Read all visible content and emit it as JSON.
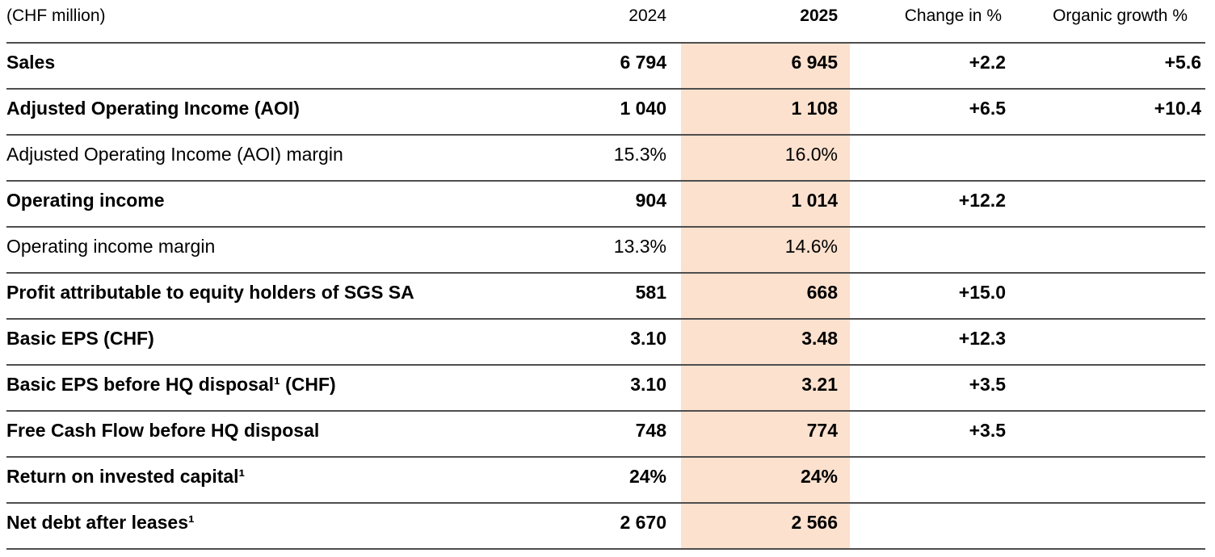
{
  "table": {
    "highlight_color": "#fce1ce",
    "rule_color": "#4e4e4e",
    "header": {
      "unit": "(CHF million)",
      "y2024": "2024",
      "y2025": "2025",
      "change": "Change in %",
      "organic": "Organic growth %"
    },
    "rows": [
      {
        "label": "Sales",
        "y2024": "6 794",
        "y2025": "6 945",
        "change": "+2.2",
        "organic": "+5.6",
        "bold": true
      },
      {
        "label": "Adjusted Operating Income (AOI)",
        "y2024": "1 040",
        "y2025": "1 108",
        "change": "+6.5",
        "organic": "+10.4",
        "bold": true
      },
      {
        "label": "Adjusted Operating Income (AOI) margin",
        "y2024": "15.3%",
        "y2025": "16.0%",
        "change": "",
        "organic": "",
        "bold": false
      },
      {
        "label": "Operating income",
        "y2024": "904",
        "y2025": "1 014",
        "change": "+12.2",
        "organic": "",
        "bold": true
      },
      {
        "label": "Operating income margin",
        "y2024": "13.3%",
        "y2025": "14.6%",
        "change": "",
        "organic": "",
        "bold": false
      },
      {
        "label": "Profit attributable to equity holders of SGS SA",
        "y2024": "581",
        "y2025": "668",
        "change": "+15.0",
        "organic": "",
        "bold": true
      },
      {
        "label": "Basic EPS (CHF)",
        "y2024": "3.10",
        "y2025": "3.48",
        "change": "+12.3",
        "organic": "",
        "bold": true
      },
      {
        "label": "Basic EPS before HQ disposal¹ (CHF)",
        "y2024": "3.10",
        "y2025": "3.21",
        "change": "+3.5",
        "organic": "",
        "bold": true
      },
      {
        "label": "Free Cash Flow before HQ disposal",
        "y2024": "748",
        "y2025": "774",
        "change": "+3.5",
        "organic": "",
        "bold": true
      },
      {
        "label": "Return on invested capital¹",
        "y2024": "24%",
        "y2025": "24%",
        "change": "",
        "organic": "",
        "bold": true
      },
      {
        "label": "Net debt after leases¹",
        "y2024": "2 670",
        "y2025": "2 566",
        "change": "",
        "organic": "",
        "bold": true
      }
    ]
  }
}
